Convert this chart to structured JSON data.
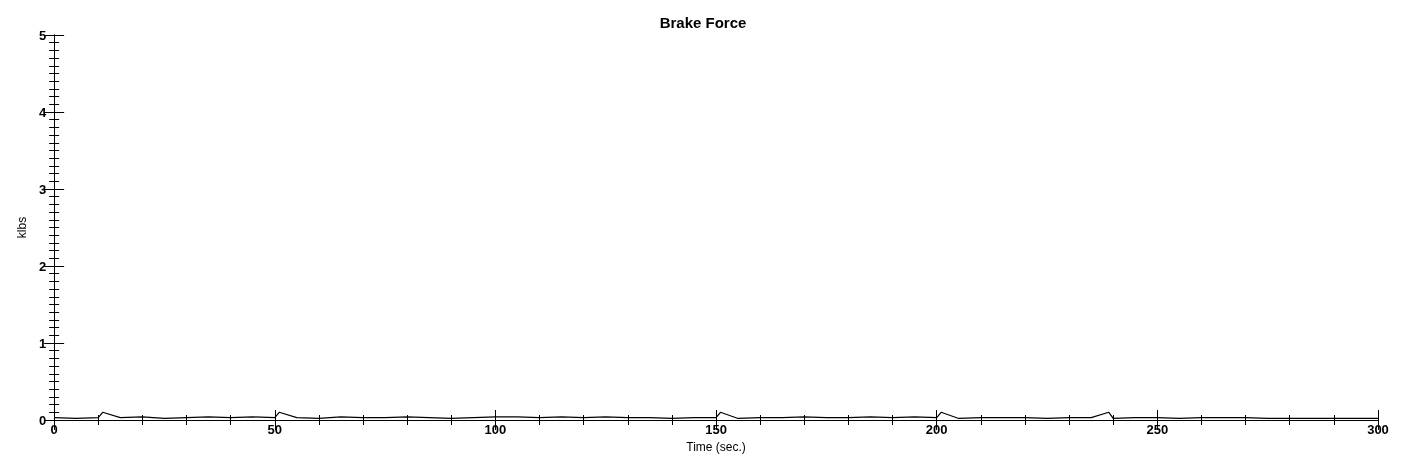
{
  "chart_data": {
    "type": "line",
    "title": "Brake Force",
    "xlabel": "Time (sec.)",
    "ylabel": "klbs",
    "x": [
      0,
      5,
      10,
      11,
      15,
      20,
      25,
      30,
      35,
      40,
      45,
      50,
      51,
      55,
      60,
      65,
      70,
      75,
      80,
      85,
      90,
      95,
      100,
      105,
      110,
      115,
      120,
      125,
      130,
      135,
      140,
      145,
      150,
      151,
      155,
      160,
      165,
      170,
      175,
      180,
      185,
      190,
      195,
      200,
      201,
      205,
      210,
      215,
      220,
      225,
      230,
      235,
      239,
      240,
      245,
      250,
      255,
      260,
      265,
      270,
      275,
      280,
      285,
      290,
      295,
      300
    ],
    "series": [
      {
        "color": "#000000",
        "values": [
          0.03,
          0.02,
          0.03,
          0.1,
          0.03,
          0.04,
          0.02,
          0.03,
          0.04,
          0.03,
          0.04,
          0.03,
          0.1,
          0.03,
          0.02,
          0.04,
          0.03,
          0.03,
          0.04,
          0.03,
          0.02,
          0.03,
          0.04,
          0.04,
          0.03,
          0.04,
          0.03,
          0.04,
          0.03,
          0.03,
          0.02,
          0.03,
          0.03,
          0.1,
          0.02,
          0.03,
          0.03,
          0.04,
          0.03,
          0.03,
          0.04,
          0.03,
          0.04,
          0.03,
          0.1,
          0.02,
          0.03,
          0.03,
          0.03,
          0.02,
          0.03,
          0.03,
          0.1,
          0.02,
          0.03,
          0.03,
          0.02,
          0.03,
          0.03,
          0.03,
          0.02,
          0.02,
          0.02,
          0.02,
          0.02,
          0.02
        ]
      }
    ],
    "xlim": [
      0,
      300
    ],
    "xticks": [
      0,
      50,
      100,
      150,
      200,
      250,
      300
    ],
    "ylim": [
      0,
      5
    ],
    "yticks": [
      0,
      1,
      2,
      3,
      4,
      5
    ],
    "grid": false,
    "marker": "none",
    "line_style": "solid"
  }
}
